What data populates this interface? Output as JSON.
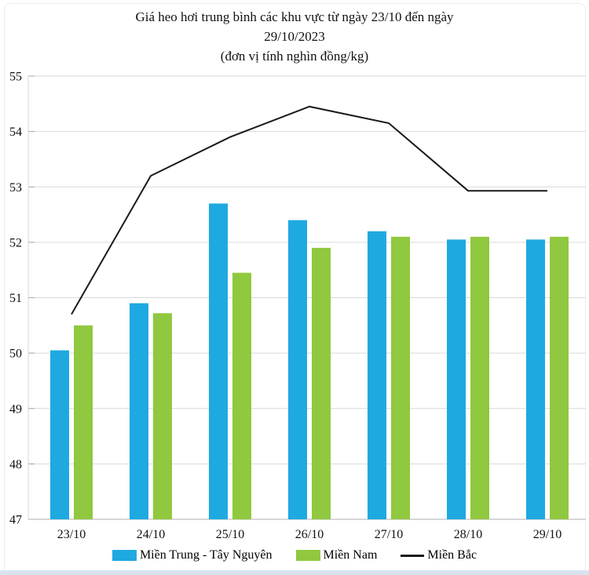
{
  "title": {
    "line1": "Giá heo hơi trung bình các khu vực từ ngày 23/10 đến ngày",
    "line2": "29/10/2023",
    "line3": "(đơn vị tính nghìn đồng/kg)"
  },
  "colors": {
    "bar_blue": "#1FA9E1",
    "bar_green": "#90C83F",
    "line_black": "#1a1a1a",
    "gridline": "#d9d9d9",
    "axis_line": "#bfbfbf",
    "tick": "#a6a6a6",
    "text": "#111111",
    "bottom_strip": "#d9e3f0"
  },
  "chart_data": {
    "type": "bar",
    "subtype": "grouped bars with overlaid line",
    "title": "Giá heo hơi trung bình các khu vực từ ngày 23/10 đến ngày 29/10/2023 (đơn vị tính nghìn đồng/kg)",
    "categories": [
      "23/10",
      "24/10",
      "25/10",
      "26/10",
      "27/10",
      "28/10",
      "29/10"
    ],
    "series": [
      {
        "name": "Miền Trung - Tây Nguyên",
        "type": "bar",
        "color": "#1FA9E1",
        "values": [
          50.05,
          50.9,
          52.7,
          52.4,
          52.2,
          52.05,
          52.05
        ]
      },
      {
        "name": "Miền Nam",
        "type": "bar",
        "color": "#90C83F",
        "values": [
          50.5,
          50.72,
          51.45,
          51.9,
          52.1,
          52.1,
          52.1
        ]
      },
      {
        "name": "Miền Bắc",
        "type": "line",
        "color": "#1a1a1a",
        "values": [
          50.7,
          53.2,
          53.9,
          54.45,
          54.15,
          52.93,
          52.93
        ]
      }
    ],
    "xlabel": "",
    "ylabel": "",
    "ylim": [
      47,
      55
    ],
    "ytick_step": 1,
    "yticks": [
      47,
      48,
      49,
      50,
      51,
      52,
      53,
      54,
      55
    ],
    "grid": true,
    "legend_position": "bottom"
  }
}
